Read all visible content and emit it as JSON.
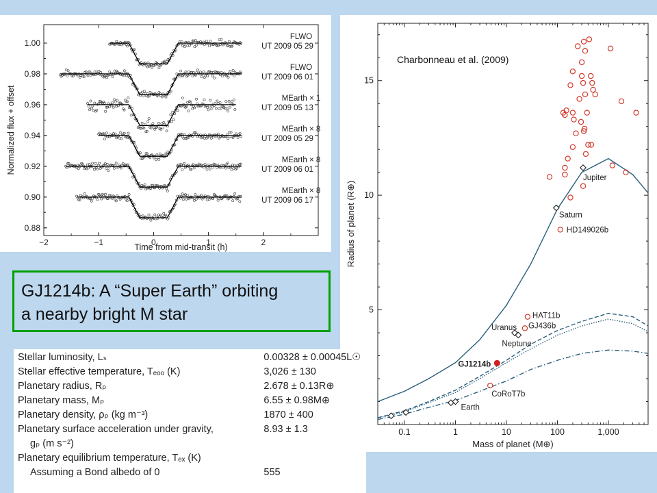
{
  "title_box": {
    "line1": "GJ1214b: A “Super Earth” orbiting",
    "line2": "a nearby bright M star"
  },
  "citation": "Charbonneau  et al. (2009)",
  "table": [
    {
      "label": "Stellar luminosity, Lₛ",
      "value": "0.00328 ± 0.00045L☉"
    },
    {
      "label": "Stellar effective temperature, Tₑₒₒ (K)",
      "value": "3,026 ± 130"
    },
    {
      "label": "Planetary radius, Rₚ",
      "value": "2.678 ± 0.13R⊕"
    },
    {
      "label": "Planetary mass, Mₚ",
      "value": "6.55 ± 0.98M⊕"
    },
    {
      "label": "Planetary density, ρₚ (kg m⁻³)",
      "value": "1870 ± 400"
    },
    {
      "label": "Planetary surface acceleration under gravity,",
      "value": "8.93 ± 1.3"
    },
    {
      "label": "gₚ (m s⁻²)",
      "value": "",
      "indent": true
    },
    {
      "label": "Planetary equilibrium temperature, Tₑₓ (K)",
      "value": ""
    },
    {
      "label": "Assuming a Bond albedo of 0",
      "value": "555",
      "indent": true
    }
  ],
  "chart_data": [
    {
      "type": "scatter",
      "xlabel": "Time from mid-transit (h)",
      "ylabel": "Normalized flux + offset",
      "xlim": [
        -2,
        3
      ],
      "ylim": [
        0.875,
        1.012
      ],
      "xticks": [
        "−2",
        "−1",
        "0",
        "1",
        "2"
      ],
      "yticks": [
        "0.88",
        "0.90",
        "0.92",
        "0.94",
        "0.96",
        "0.98",
        "1.00"
      ],
      "transit": {
        "ingress_start": -0.45,
        "ingress_end": -0.25,
        "egress_start": 0.25,
        "egress_end": 0.45,
        "depth": 0.0135
      },
      "series": [
        {
          "label1": "FLWO",
          "label2": "UT 2009 05 29",
          "baseline": 1.0,
          "x_range": [
            -0.8,
            1.6
          ]
        },
        {
          "label1": "FLWO",
          "label2": "UT 2009 06 01",
          "baseline": 0.98,
          "x_range": [
            -1.7,
            1.6
          ]
        },
        {
          "label1": "MEarth × 1",
          "label2": "UT 2009 05 13",
          "baseline": 0.96,
          "x_range": [
            -1.2,
            1.5
          ]
        },
        {
          "label1": "MEarth × 8",
          "label2": "UT 2009 05 29",
          "baseline": 0.94,
          "x_range": [
            -1.0,
            1.6
          ]
        },
        {
          "label1": "MEarth × 8",
          "label2": "UT 2009 06 01",
          "baseline": 0.92,
          "x_range": [
            -1.6,
            1.6
          ]
        },
        {
          "label1": "MEarth × 8",
          "label2": "UT 2009 06 17",
          "baseline": 0.9,
          "x_range": [
            -1.4,
            1.6
          ]
        }
      ]
    },
    {
      "type": "scatter",
      "xlabel": "Mass of planet (M⊕)",
      "ylabel": "Radius of planet (R⊕)",
      "xscale": "log",
      "xlim": [
        0.03,
        6000
      ],
      "ylim": [
        0,
        17.5
      ],
      "xticks": [
        {
          "v": 0.1,
          "t": "0.1"
        },
        {
          "v": 1,
          "t": "1"
        },
        {
          "v": 10,
          "t": "10"
        },
        {
          "v": 100,
          "t": "100"
        },
        {
          "v": 1000,
          "t": "1,000"
        }
      ],
      "yticks": [
        {
          "v": 5,
          "t": "5"
        },
        {
          "v": 10,
          "t": "10"
        },
        {
          "v": 15,
          "t": "15"
        }
      ],
      "labeled_planets": [
        {
          "name": "Earth",
          "mass": 1.0,
          "radius": 1.0,
          "marker": "diamond"
        },
        {
          "name": "Uranus",
          "mass": 14.5,
          "radius": 4.0,
          "marker": "diamond"
        },
        {
          "name": "Neptune",
          "mass": 17.1,
          "radius": 3.9,
          "marker": "diamond"
        },
        {
          "name": "Saturn",
          "mass": 95,
          "radius": 9.45,
          "marker": "diamond"
        },
        {
          "name": "Jupiter",
          "mass": 318,
          "radius": 11.2,
          "marker": "diamond"
        },
        {
          "name": "GJ1214b",
          "mass": 6.55,
          "radius": 2.68,
          "marker": "filled"
        },
        {
          "name": "HAT11b",
          "mass": 26,
          "radius": 4.7,
          "marker": "circle"
        },
        {
          "name": "GJ436b",
          "mass": 23,
          "radius": 4.2,
          "marker": "circle"
        },
        {
          "name": "HD149026b",
          "mass": 114,
          "radius": 8.5,
          "marker": "circle"
        },
        {
          "name": "CoRoT7b",
          "mass": 4.8,
          "radius": 1.7,
          "marker": "circle"
        }
      ],
      "unlabeled_diamonds": [
        {
          "mass": 0.055,
          "radius": 0.38
        },
        {
          "mass": 0.107,
          "radius": 0.53
        },
        {
          "mass": 0.815,
          "radius": 0.95
        }
      ],
      "exoplanets": [
        [
          330,
          16.7
        ],
        [
          420,
          16.8
        ],
        [
          250,
          16.5
        ],
        [
          350,
          16.3
        ],
        [
          1100,
          16.4
        ],
        [
          300,
          15.8
        ],
        [
          200,
          15.4
        ],
        [
          300,
          15.2
        ],
        [
          450,
          15.2
        ],
        [
          480,
          14.9
        ],
        [
          320,
          14.9
        ],
        [
          180,
          14.8
        ],
        [
          500,
          14.6
        ],
        [
          550,
          14.4
        ],
        [
          350,
          14.4
        ],
        [
          270,
          14.2
        ],
        [
          1800,
          14.1
        ],
        [
          3500,
          13.6
        ],
        [
          150,
          13.7
        ],
        [
          130,
          13.6
        ],
        [
          200,
          13.6
        ],
        [
          380,
          13.6
        ],
        [
          140,
          13.5
        ],
        [
          210,
          13.3
        ],
        [
          290,
          13.2
        ],
        [
          340,
          12.9
        ],
        [
          330,
          12.8
        ],
        [
          230,
          12.7
        ],
        [
          400,
          12.2
        ],
        [
          460,
          12.2
        ],
        [
          200,
          12.1
        ],
        [
          360,
          11.8
        ],
        [
          160,
          11.6
        ],
        [
          140,
          11.2
        ],
        [
          70,
          10.8
        ],
        [
          140,
          10.9
        ],
        [
          1200,
          11.3
        ],
        [
          2200,
          11.0
        ],
        [
          320,
          10.4
        ],
        [
          180,
          9.9
        ]
      ],
      "models": [
        {
          "name": "solid",
          "points": [
            [
              0.03,
              1.0
            ],
            [
              0.1,
              1.45
            ],
            [
              0.3,
              2.0
            ],
            [
              1,
              2.7
            ],
            [
              3,
              3.7
            ],
            [
              10,
              5.2
            ],
            [
              30,
              7.0
            ],
            [
              100,
              9.4
            ],
            [
              300,
              11.0
            ],
            [
              1000,
              11.6
            ],
            [
              3000,
              10.9
            ],
            [
              6000,
              10.1
            ]
          ]
        },
        {
          "name": "dashed",
          "points": [
            [
              0.03,
              0.3
            ],
            [
              0.1,
              0.6
            ],
            [
              0.3,
              1.0
            ],
            [
              1,
              1.5
            ],
            [
              3,
              2.1
            ],
            [
              10,
              2.8
            ],
            [
              30,
              3.5
            ],
            [
              100,
              4.1
            ],
            [
              300,
              4.5
            ],
            [
              1000,
              4.85
            ],
            [
              3000,
              4.7
            ],
            [
              6000,
              4.3
            ]
          ]
        },
        {
          "name": "dotted",
          "points": [
            [
              0.03,
              0.28
            ],
            [
              0.1,
              0.55
            ],
            [
              0.3,
              0.95
            ],
            [
              1,
              1.4
            ],
            [
              3,
              2.0
            ],
            [
              10,
              2.7
            ],
            [
              30,
              3.3
            ],
            [
              100,
              3.9
            ],
            [
              300,
              4.3
            ],
            [
              1000,
              4.6
            ],
            [
              3000,
              4.4
            ],
            [
              6000,
              4.05
            ]
          ]
        },
        {
          "name": "dashdot",
          "points": [
            [
              0.03,
              0.22
            ],
            [
              0.1,
              0.45
            ],
            [
              0.3,
              0.75
            ],
            [
              1,
              1.05
            ],
            [
              3,
              1.45
            ],
            [
              10,
              1.9
            ],
            [
              30,
              2.4
            ],
            [
              100,
              2.8
            ],
            [
              300,
              3.1
            ],
            [
              1000,
              3.25
            ],
            [
              3000,
              3.2
            ],
            [
              6000,
              3.1
            ]
          ]
        }
      ]
    }
  ]
}
